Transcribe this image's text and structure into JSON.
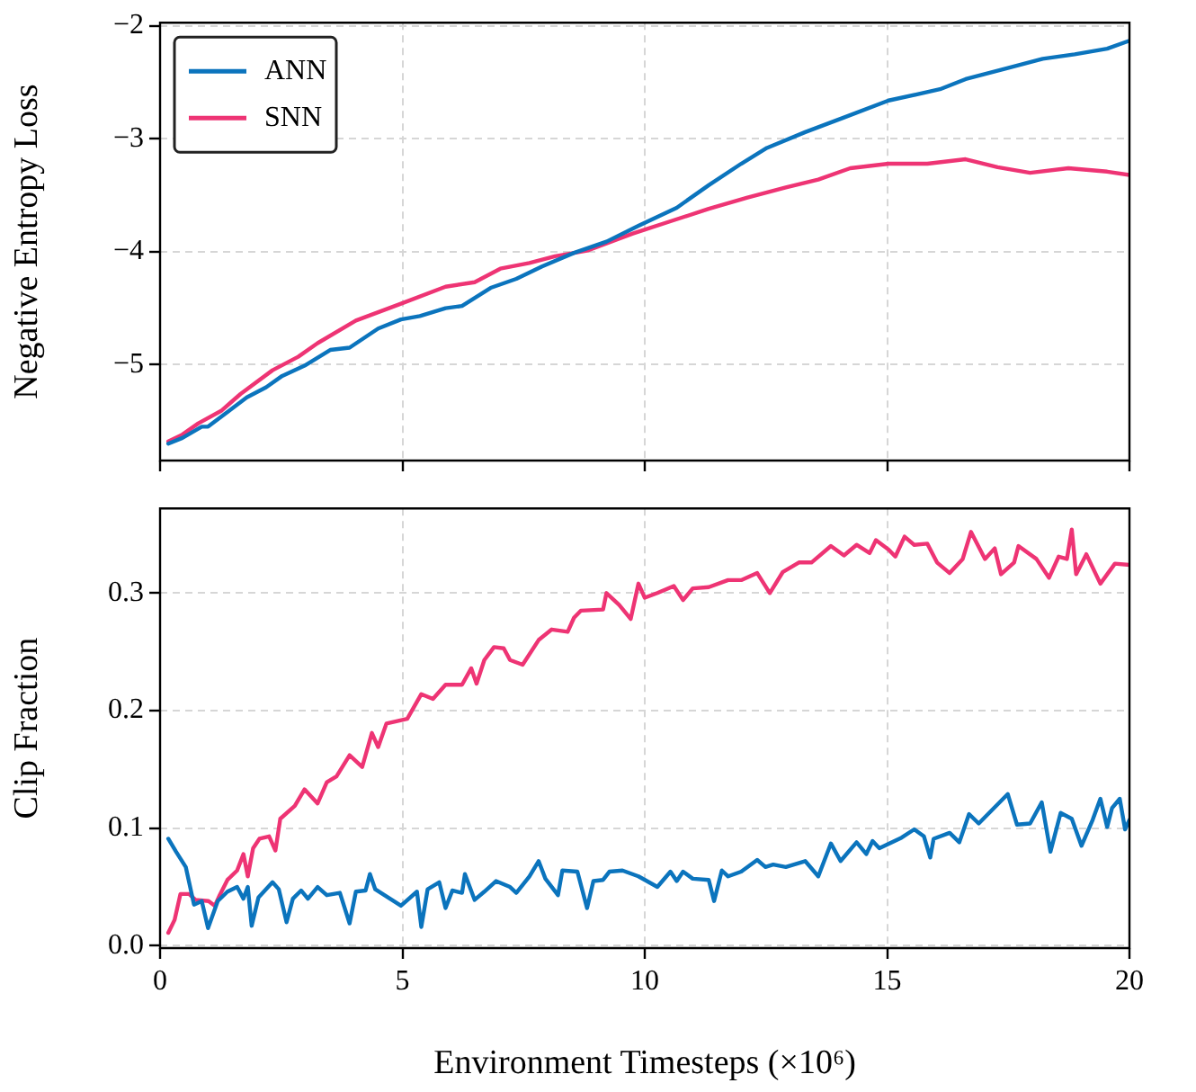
{
  "chart_data": [
    {
      "type": "line",
      "ylabel": "Negative Entropy Loss",
      "xlim": [
        0,
        20
      ],
      "xticks": [
        0,
        5,
        10,
        15,
        20
      ],
      "ylim": [
        -5.85,
        -1.97
      ],
      "yticks": [
        {
          "value": -5,
          "label": "−5"
        },
        {
          "value": -4,
          "label": "−4"
        },
        {
          "value": -3,
          "label": "−3"
        },
        {
          "value": -2,
          "label": "−2"
        }
      ],
      "grid": true,
      "legend": "top left",
      "tick_labels": "y",
      "series": [
        {
          "name": "ANN",
          "color": "#0b74bd",
          "x": [
            0.17,
            0.46,
            0.86,
            0.99,
            1.79,
            2.19,
            2.52,
            2.98,
            3.51,
            3.91,
            4.5,
            4.97,
            5.36,
            5.89,
            6.23,
            6.82,
            7.35,
            7.88,
            8.54,
            9.21,
            9.87,
            10.66,
            11.32,
            11.99,
            12.52,
            13.31,
            14.11,
            15.03,
            16.09,
            16.62,
            17.42,
            18.21,
            18.87,
            19.54,
            20
          ],
          "values": [
            -5.7,
            -5.65,
            -5.55,
            -5.55,
            -5.29,
            -5.2,
            -5.1,
            -5.01,
            -4.87,
            -4.85,
            -4.68,
            -4.6,
            -4.57,
            -4.5,
            -4.48,
            -4.32,
            -4.24,
            -4.13,
            -4.01,
            -3.91,
            -3.77,
            -3.61,
            -3.41,
            -3.22,
            -3.08,
            -2.94,
            -2.81,
            -2.66,
            -2.56,
            -2.47,
            -2.38,
            -2.29,
            -2.25,
            -2.2,
            -2.13
          ]
        },
        {
          "name": "SNN",
          "color": "#ee3474",
          "x": [
            0.17,
            0.46,
            0.79,
            1.26,
            1.66,
            2.32,
            2.85,
            3.25,
            4.04,
            4.97,
            5.89,
            6.49,
            7.02,
            7.62,
            8.15,
            8.81,
            9.74,
            10.53,
            11.32,
            12.12,
            12.91,
            13.58,
            14.24,
            15.03,
            15.83,
            16.62,
            17.28,
            17.95,
            18.74,
            19.54,
            20
          ],
          "values": [
            -5.68,
            -5.62,
            -5.52,
            -5.41,
            -5.26,
            -5.05,
            -4.93,
            -4.81,
            -4.61,
            -4.46,
            -4.31,
            -4.27,
            -4.15,
            -4.1,
            -4.04,
            -3.99,
            -3.84,
            -3.73,
            -3.62,
            -3.52,
            -3.43,
            -3.36,
            -3.26,
            -3.22,
            -3.22,
            -3.18,
            -3.25,
            -3.3,
            -3.26,
            -3.29,
            -3.32
          ]
        }
      ]
    },
    {
      "type": "line",
      "xlabel": "Environment Timesteps (×10⁶)",
      "ylabel": "Clip Fraction",
      "xlim": [
        0,
        20
      ],
      "xticks": [
        0,
        5,
        10,
        15,
        20
      ],
      "ylim": [
        -0.002,
        0.372
      ],
      "yticks": [
        {
          "value": 0,
          "label": "0.0"
        },
        0.1,
        0.2,
        0.3
      ],
      "grid": true,
      "series": [
        {
          "color": "#0b74bd",
          "x": [
            0.17,
            0.33,
            0.53,
            0.7,
            0.86,
            0.99,
            1.19,
            1.39,
            1.59,
            1.72,
            1.81,
            1.89,
            2.03,
            2.32,
            2.45,
            2.61,
            2.74,
            2.91,
            3.05,
            3.25,
            3.44,
            3.71,
            3.91,
            4.04,
            4.24,
            4.33,
            4.44,
            4.97,
            5.3,
            5.39,
            5.52,
            5.76,
            5.89,
            6.03,
            6.23,
            6.29,
            6.49,
            6.69,
            6.93,
            7.22,
            7.35,
            7.62,
            7.81,
            7.95,
            8.21,
            8.3,
            8.61,
            8.81,
            8.94,
            9.14,
            9.27,
            9.54,
            9.87,
            10.26,
            10.53,
            10.66,
            10.79,
            10.99,
            11.32,
            11.43,
            11.59,
            11.72,
            11.99,
            12.32,
            12.49,
            12.65,
            12.91,
            13.31,
            13.58,
            13.84,
            14.04,
            14.37,
            14.57,
            14.7,
            14.84,
            15.3,
            15.56,
            15.76,
            15.89,
            15.96,
            16.29,
            16.49,
            16.69,
            16.89,
            17.49,
            17.68,
            17.95,
            18.19,
            18.37,
            18.58,
            18.81,
            19.01,
            19.24,
            19.4,
            19.54,
            19.64,
            19.8,
            19.91,
            20
          ],
          "values": [
            0.091,
            0.08,
            0.067,
            0.035,
            0.038,
            0.015,
            0.038,
            0.046,
            0.05,
            0.04,
            0.05,
            0.017,
            0.041,
            0.054,
            0.048,
            0.02,
            0.04,
            0.047,
            0.04,
            0.05,
            0.043,
            0.045,
            0.019,
            0.046,
            0.047,
            0.061,
            0.048,
            0.034,
            0.046,
            0.016,
            0.048,
            0.054,
            0.032,
            0.047,
            0.045,
            0.061,
            0.039,
            0.046,
            0.055,
            0.05,
            0.045,
            0.059,
            0.072,
            0.057,
            0.043,
            0.064,
            0.063,
            0.032,
            0.055,
            0.056,
            0.063,
            0.064,
            0.059,
            0.05,
            0.063,
            0.055,
            0.063,
            0.057,
            0.056,
            0.038,
            0.064,
            0.059,
            0.063,
            0.073,
            0.067,
            0.069,
            0.067,
            0.072,
            0.059,
            0.087,
            0.072,
            0.088,
            0.078,
            0.089,
            0.083,
            0.092,
            0.099,
            0.093,
            0.075,
            0.091,
            0.096,
            0.088,
            0.112,
            0.104,
            0.129,
            0.103,
            0.104,
            0.122,
            0.08,
            0.113,
            0.108,
            0.085,
            0.107,
            0.125,
            0.101,
            0.117,
            0.125,
            0.099,
            0.107
          ]
        },
        {
          "color": "#ee3474",
          "x": [
            0.17,
            0.3,
            0.42,
            0.6,
            0.73,
            1,
            1.13,
            1.23,
            1.39,
            1.59,
            1.72,
            1.81,
            1.92,
            2.05,
            2.25,
            2.38,
            2.48,
            2.78,
            2.98,
            3.25,
            3.44,
            3.64,
            3.91,
            4.17,
            4.37,
            4.5,
            4.67,
            5.1,
            5.39,
            5.63,
            5.89,
            6.23,
            6.42,
            6.53,
            6.69,
            6.89,
            7.09,
            7.22,
            7.48,
            7.81,
            8.08,
            8.41,
            8.54,
            8.68,
            9.14,
            9.21,
            9.47,
            9.71,
            9.87,
            10,
            10.26,
            10.6,
            10.79,
            10.99,
            11.32,
            11.72,
            11.99,
            12.32,
            12.58,
            12.85,
            13.18,
            13.44,
            13.84,
            14.11,
            14.37,
            14.64,
            14.77,
            15.03,
            15.17,
            15.36,
            15.56,
            15.83,
            16.03,
            16.29,
            16.56,
            16.73,
            17.02,
            17.22,
            17.35,
            17.62,
            17.71,
            18.08,
            18.34,
            18.54,
            18.71,
            18.81,
            18.9,
            19.11,
            19.4,
            19.7,
            20
          ],
          "values": [
            0.011,
            0.022,
            0.044,
            0.044,
            0.039,
            0.038,
            0.034,
            0.043,
            0.056,
            0.064,
            0.078,
            0.059,
            0.083,
            0.091,
            0.093,
            0.081,
            0.108,
            0.119,
            0.133,
            0.121,
            0.139,
            0.144,
            0.162,
            0.152,
            0.181,
            0.169,
            0.189,
            0.193,
            0.214,
            0.21,
            0.222,
            0.222,
            0.236,
            0.223,
            0.243,
            0.254,
            0.253,
            0.243,
            0.239,
            0.26,
            0.269,
            0.267,
            0.279,
            0.285,
            0.286,
            0.3,
            0.29,
            0.278,
            0.308,
            0.296,
            0.3,
            0.306,
            0.294,
            0.304,
            0.305,
            0.311,
            0.311,
            0.317,
            0.3,
            0.318,
            0.326,
            0.326,
            0.34,
            0.332,
            0.341,
            0.334,
            0.345,
            0.337,
            0.331,
            0.348,
            0.341,
            0.342,
            0.326,
            0.317,
            0.329,
            0.352,
            0.329,
            0.338,
            0.316,
            0.326,
            0.34,
            0.329,
            0.313,
            0.331,
            0.329,
            0.354,
            0.316,
            0.333,
            0.308,
            0.325,
            0.324
          ]
        }
      ]
    }
  ]
}
